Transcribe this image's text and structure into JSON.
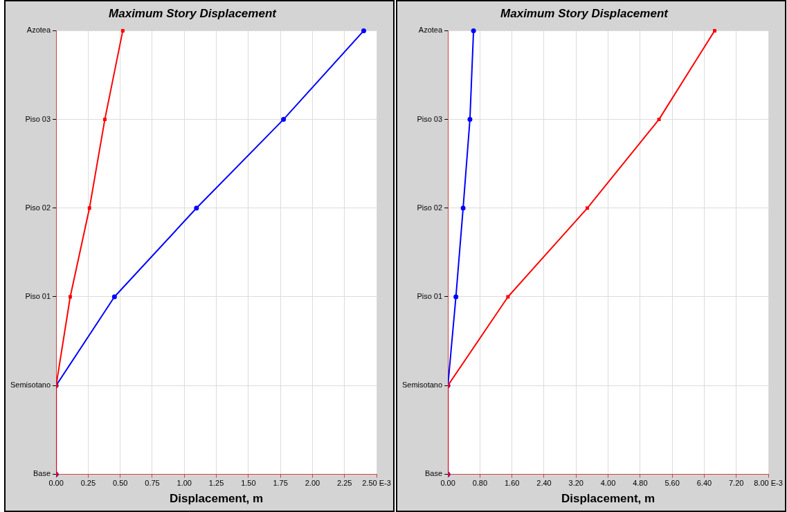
{
  "chart_data": [
    {
      "type": "line",
      "title": "Maximum Story Displacement",
      "xlabel": "Displacement, m",
      "grid": true,
      "legend": false,
      "orientation": "horizontal",
      "categories": [
        "Azotea",
        "Piso 03",
        "Piso 02",
        "Piso 01",
        "Semisotano",
        "Base"
      ],
      "xlim": [
        0,
        2.5
      ],
      "xticks": [
        {
          "value": 0,
          "label": "0.00"
        },
        0.25,
        {
          "value": 0.5,
          "label": "0.50"
        },
        0.75,
        {
          "value": 1,
          "label": "1.00"
        },
        1.25,
        {
          "value": 1.5,
          "label": "1.50"
        },
        1.75,
        {
          "value": 2,
          "label": "2.00"
        },
        2.25,
        {
          "value": 2.5,
          "label": "2.50 E-3"
        }
      ],
      "series": [
        {
          "color": "#0000ff",
          "marker": "circle",
          "values": [
            2.4,
            1.774,
            1.095,
            0.455,
            0,
            0
          ]
        },
        {
          "color": "#ff0000",
          "marker": "square",
          "values": [
            0.52,
            0.38,
            0.26,
            0.11,
            0,
            0
          ]
        }
      ]
    },
    {
      "type": "line",
      "title": "Maximum Story Displacement",
      "xlabel": "Displacement, m",
      "grid": true,
      "legend": false,
      "orientation": "horizontal",
      "categories": [
        "Azotea",
        "Piso 03",
        "Piso 02",
        "Piso 01",
        "Semisotano",
        "Base"
      ],
      "xlim": [
        0,
        8
      ],
      "xticks": [
        {
          "value": 0,
          "label": "0.00"
        },
        {
          "value": 0.8,
          "label": "0.80"
        },
        {
          "value": 1.6,
          "label": "1.60"
        },
        {
          "value": 2.4,
          "label": "2.40"
        },
        {
          "value": 3.2,
          "label": "3.20"
        },
        {
          "value": 4,
          "label": "4.00"
        },
        {
          "value": 4.8,
          "label": "4.80"
        },
        {
          "value": 5.6,
          "label": "5.60"
        },
        {
          "value": 6.4,
          "label": "6.40"
        },
        {
          "value": 7.2,
          "label": "7.20"
        },
        {
          "value": 8,
          "label": "8.00 E-3"
        }
      ],
      "series": [
        {
          "color": "#0000ff",
          "marker": "circle",
          "values": [
            0.64,
            0.55,
            0.38,
            0.2,
            0,
            0
          ]
        },
        {
          "color": "#ff0000",
          "marker": "square",
          "values": [
            6.66,
            5.27,
            3.48,
            1.5,
            0,
            0
          ]
        }
      ]
    }
  ]
}
